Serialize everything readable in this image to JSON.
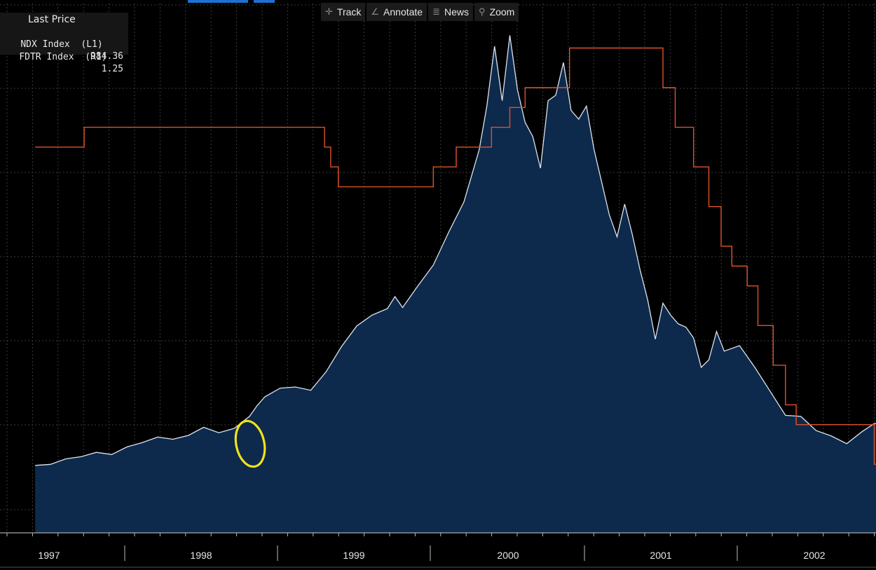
{
  "toolbar": {
    "track_label": "Track",
    "annotate_label": "Annotate",
    "news_label": "News",
    "zoom_label": "Zoom",
    "track_icon": "crosshair-icon",
    "annotate_icon": "pencil-icon",
    "news_icon": "news-icon",
    "zoom_icon": "magnifier-icon"
  },
  "legend": {
    "title": "Last Price",
    "rows": [
      {
        "label": "NDX Index  (L1)",
        "value": "984.36"
      },
      {
        "label": "FDTR Index  (R1)",
        "value": "1.25"
      }
    ]
  },
  "colors": {
    "background": "#000000",
    "area_fill": "#0d2a4d",
    "ndx_line": "#dde4ee",
    "fdtr_line": "#e0522a",
    "grid": "#3a3a3a",
    "annotation_circle": "#f2e21a",
    "axis_text": "#e6e6e6"
  },
  "chart_data": {
    "type": "area",
    "x_axis": {
      "tick_labels": [
        "1997",
        "1998",
        "1999",
        "2000",
        "2001",
        "2002"
      ]
    },
    "series": [
      {
        "name": "NDX Index  (L1)",
        "kind": "area",
        "axis": "left",
        "x": [
          1996.9,
          1997.0,
          1997.1,
          1997.2,
          1997.3,
          1997.4,
          1997.5,
          1997.6,
          1997.7,
          1997.8,
          1997.9,
          1998.0,
          1998.1,
          1998.2,
          1998.3,
          1998.35,
          1998.4,
          1998.5,
          1998.6,
          1998.7,
          1998.8,
          1998.9,
          1999.0,
          1999.1,
          1999.2,
          1999.25,
          1999.3,
          1999.4,
          1999.5,
          1999.6,
          1999.7,
          1999.8,
          1999.85,
          1999.9,
          1999.95,
          2000.0,
          2000.05,
          2000.1,
          2000.15,
          2000.2,
          2000.25,
          2000.3,
          2000.35,
          2000.4,
          2000.45,
          2000.5,
          2000.55,
          2000.6,
          2000.65,
          2000.7,
          2000.75,
          2000.8,
          2000.85,
          2000.9,
          2000.95,
          2001.0,
          2001.05,
          2001.1,
          2001.15,
          2001.2,
          2001.25,
          2001.3,
          2001.35,
          2001.4,
          2001.5,
          2001.6,
          2001.7,
          2001.8,
          2001.9,
          2002.0,
          2002.1,
          2002.2,
          2002.3,
          2002.38
        ],
        "values": [
          600,
          610,
          660,
          680,
          720,
          700,
          770,
          810,
          860,
          840,
          875,
          950,
          900,
          940,
          1050,
          1150,
          1230,
          1310,
          1320,
          1290,
          1460,
          1690,
          1880,
          1980,
          2040,
          2150,
          2050,
          2250,
          2440,
          2740,
          3020,
          3500,
          3900,
          4450,
          3950,
          4550,
          4050,
          3750,
          3620,
          3330,
          3950,
          4000,
          4300,
          3860,
          3780,
          3900,
          3500,
          3200,
          2900,
          2700,
          3000,
          2720,
          2400,
          2120,
          1760,
          2090,
          1980,
          1900,
          1870,
          1770,
          1500,
          1570,
          1830,
          1650,
          1700,
          1500,
          1280,
          1060,
          1050,
          920,
          870,
          800,
          910,
          984.36
        ]
      },
      {
        "name": "FDTR Index  (R1)",
        "kind": "step",
        "axis": "right",
        "x": [
          1996.9,
          1996.95,
          1997.22,
          1998.7,
          1998.79,
          1998.83,
          1998.88,
          1999.5,
          1999.65,
          1999.88,
          2000.0,
          2000.1,
          2000.39,
          2001.0,
          2001.08,
          2001.2,
          2001.3,
          2001.38,
          2001.45,
          2001.55,
          2001.62,
          2001.72,
          2001.8,
          2001.87,
          2001.93,
          2002.35,
          2002.38
        ],
        "values": [
          5.25,
          5.25,
          5.5,
          5.5,
          5.25,
          5.0,
          4.75,
          5.0,
          5.25,
          5.5,
          5.75,
          6.0,
          6.5,
          6.0,
          5.5,
          5.0,
          4.5,
          4.0,
          3.75,
          3.5,
          3.0,
          2.5,
          2.0,
          1.75,
          1.75,
          1.75,
          1.25
        ]
      }
    ],
    "annotation": {
      "kind": "ellipse",
      "at_x": 1998.3
    }
  }
}
